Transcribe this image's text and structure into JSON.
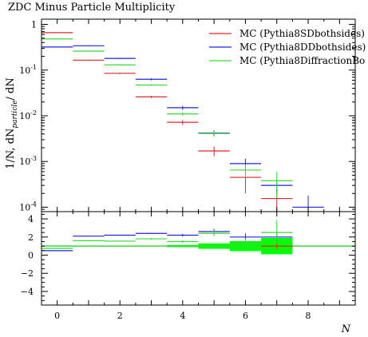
{
  "title": "ZDC Minus Particle Multiplicity",
  "chart_data": [
    {
      "type": "line",
      "subtype": "histogram",
      "title": "ZDC Minus Particle Multiplicity",
      "xlabel": "",
      "ylabel": "1/N, dN particle / dN",
      "ylabel_parts": {
        "main": "1/N, dN",
        "sub": "particle",
        "tail": "/ dN"
      },
      "xlim": [
        -0.5,
        9.5
      ],
      "ylim": [
        8e-05,
        1.3
      ],
      "yscale": "log",
      "grid": false,
      "legend": "top-right",
      "ytick_labels": [
        {
          "value": 1,
          "label": "1"
        },
        {
          "value": 0.1,
          "label": "10",
          "exp": "-1"
        },
        {
          "value": 0.01,
          "label": "10",
          "exp": "-2"
        },
        {
          "value": 0.001,
          "label": "10",
          "exp": "-3"
        },
        {
          "value": 0.0001,
          "label": "10",
          "exp": "-4"
        }
      ],
      "series": [
        {
          "name": "MC (Pythia8SDbothsides)",
          "color": "#e0262a",
          "bins": [
            {
              "x": 0,
              "y": 0.66,
              "err": 0.01
            },
            {
              "x": 1,
              "y": 0.165,
              "err": 0.004
            },
            {
              "x": 2,
              "y": 0.085,
              "err": 0.003
            },
            {
              "x": 3,
              "y": 0.026,
              "err": 0.0015
            },
            {
              "x": 4,
              "y": 0.0072,
              "err": 0.0009
            },
            {
              "x": 5,
              "y": 0.0017,
              "err": 0.0004
            },
            {
              "x": 6,
              "y": 0.00045,
              "err": 0.00025
            },
            {
              "x": 7,
              "y": 0.000155,
              "err": 0.0001
            }
          ]
        },
        {
          "name": "MC (Pythia8DDbothsides)",
          "color": "#2121e6",
          "bins": [
            {
              "x": 0,
              "y": 0.32,
              "err": 0.008
            },
            {
              "x": 1,
              "y": 0.34,
              "err": 0.008
            },
            {
              "x": 2,
              "y": 0.18,
              "err": 0.005
            },
            {
              "x": 3,
              "y": 0.063,
              "err": 0.003
            },
            {
              "x": 4,
              "y": 0.015,
              "err": 0.0015
            },
            {
              "x": 5,
              "y": 0.0042,
              "err": 0.0006
            },
            {
              "x": 6,
              "y": 0.0009,
              "err": 0.00025
            },
            {
              "x": 7,
              "y": 0.0003,
              "err": 0.0001
            },
            {
              "x": 8,
              "y": 0.0001,
              "err": 8e-05
            }
          ]
        },
        {
          "name": "MC (Pythia8DiffractionBo",
          "color": "#36d936",
          "bins": [
            {
              "x": 0,
              "y": 0.48,
              "err": 0.01
            },
            {
              "x": 1,
              "y": 0.26,
              "err": 0.006
            },
            {
              "x": 2,
              "y": 0.13,
              "err": 0.004
            },
            {
              "x": 3,
              "y": 0.047,
              "err": 0.002
            },
            {
              "x": 4,
              "y": 0.011,
              "err": 0.001
            },
            {
              "x": 5,
              "y": 0.0041,
              "err": 0.0006
            },
            {
              "x": 6,
              "y": 0.00065,
              "err": 0.0002
            },
            {
              "x": 7,
              "y": 0.00038,
              "err": 0.00022
            }
          ]
        }
      ]
    },
    {
      "type": "line",
      "subtype": "ratio",
      "xlabel": "N",
      "ylabel": "",
      "xlim": [
        -0.5,
        9.5
      ],
      "ylim": [
        -5.5,
        4.8
      ],
      "grid": false,
      "xticks": [
        0,
        2,
        4,
        6,
        8
      ],
      "yticks": [
        4,
        2,
        0,
        -2,
        -4
      ],
      "reference_line": {
        "value": 1,
        "color": "#36d936"
      },
      "series": [
        {
          "name": "MC (Pythia8DDbothsides)",
          "color": "#2121e6",
          "bins": [
            {
              "x": 0,
              "y": 0.5,
              "err": 0
            },
            {
              "x": 1,
              "y": 2.1,
              "err": 0.05
            },
            {
              "x": 2,
              "y": 2.2,
              "err": 0.05
            },
            {
              "x": 3,
              "y": 2.4,
              "err": 0.05
            },
            {
              "x": 4,
              "y": 2.2,
              "err": 0.15
            },
            {
              "x": 5,
              "y": 2.6,
              "err": 0.3
            },
            {
              "x": 6,
              "y": 2.0,
              "err": 0.4
            },
            {
              "x": 7,
              "y": 2.0,
              "err": 0.5
            }
          ]
        },
        {
          "name": "MC (Pythia8DiffractionBo",
          "color": "#36d936",
          "bins": [
            {
              "x": 0,
              "y": 0.75,
              "err": 0
            },
            {
              "x": 1,
              "y": 1.6,
              "err": 0.05
            },
            {
              "x": 2,
              "y": 1.55,
              "err": 0.05
            },
            {
              "x": 3,
              "y": 1.8,
              "err": 0.1
            },
            {
              "x": 4,
              "y": 1.5,
              "err": 0.15
            },
            {
              "x": 5,
              "y": 2.4,
              "err": 0.3
            },
            {
              "x": 6,
              "y": 1.4,
              "err": 0.4
            },
            {
              "x": 7,
              "y": 2.5,
              "err": 1.4
            }
          ]
        },
        {
          "name": "MC (Pythia8SDbothsides)",
          "color": "#e0262a",
          "bins": [
            {
              "x": 7,
              "y": 1.0,
              "err": 0.3
            }
          ]
        }
      ],
      "uncertainty_band": {
        "color": "#00ff00",
        "bins": [
          {
            "x": 4,
            "lo": 0.88,
            "hi": 1.12
          },
          {
            "x": 5,
            "lo": 0.7,
            "hi": 1.3
          },
          {
            "x": 6,
            "lo": 0.45,
            "hi": 1.55
          },
          {
            "x": 7,
            "lo": 0.1,
            "hi": 1.9
          }
        ]
      }
    }
  ]
}
